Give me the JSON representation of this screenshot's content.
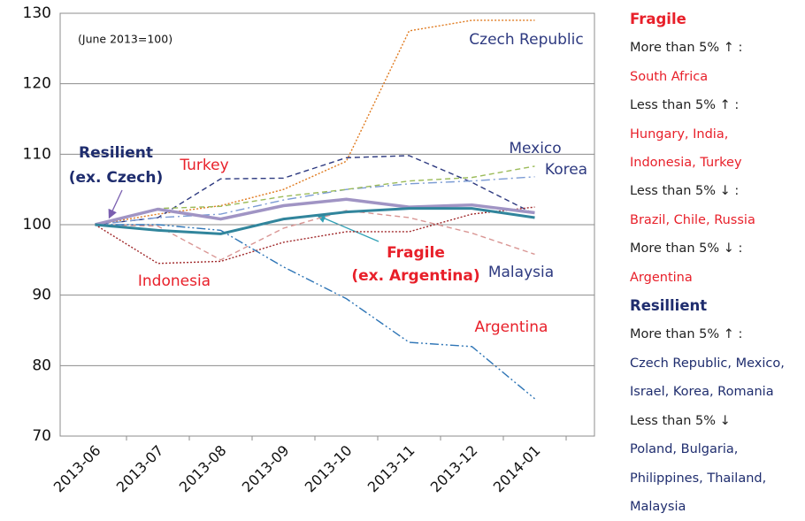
{
  "chart_data": {
    "type": "line",
    "note": "(June 2013=100)",
    "categories": [
      "2013-06",
      "2013-07",
      "2013-08",
      "2013-09",
      "2013-10",
      "2013-11",
      "2013-12",
      "2014-01"
    ],
    "ylim": [
      70,
      130
    ],
    "yticks": [
      70,
      80,
      90,
      100,
      110,
      120,
      130
    ],
    "grid": true,
    "series": [
      {
        "name": "Czech Republic",
        "color": "#e07b20",
        "style": "dotted",
        "values": [
          100,
          101.5,
          102.7,
          105,
          109,
          127.5,
          129,
          129
        ]
      },
      {
        "name": "Mexico",
        "color": "#2e3a80",
        "style": "dashed",
        "values": [
          100,
          101,
          106.5,
          106.6,
          109.5,
          109.8,
          106,
          101.5
        ]
      },
      {
        "name": "Korea",
        "color": "#7b9bd4",
        "style": "dashdot",
        "values": [
          100,
          101,
          101.5,
          103.5,
          105,
          105.8,
          106.2,
          106.8
        ]
      },
      {
        "color": "#9bbb59",
        "style": "dashed",
        "values": [
          100,
          102.3,
          102.6,
          104,
          105,
          106.2,
          106.7,
          108.3
        ]
      },
      {
        "name": "Turkey",
        "color": "#d99694",
        "style": "dashed",
        "values": [
          100,
          99.8,
          95,
          99.5,
          102,
          101,
          98.8,
          95.8
        ]
      },
      {
        "name": "Indonesia",
        "color": "#a0282a",
        "style": "dotted",
        "values": [
          100,
          94.5,
          94.8,
          97.5,
          99,
          99,
          101.5,
          102.5
        ]
      },
      {
        "name": "Argentina",
        "color": "#2e75b6",
        "style": "dashdotdot",
        "values": [
          100,
          100,
          99.2,
          94,
          89.5,
          83.3,
          82.7,
          75.3
        ]
      },
      {
        "color": "#a094c4",
        "style": "solid",
        "width": 3.5,
        "values": [
          100,
          102.2,
          100.8,
          102.7,
          103.6,
          102.5,
          102.8,
          101.7
        ]
      },
      {
        "color": "#31859c",
        "style": "solid",
        "width": 3,
        "values": [
          100,
          99.2,
          98.7,
          100.8,
          101.8,
          102.3,
          102.3,
          101
        ]
      }
    ],
    "annotations": [
      "Resilient",
      "(ex. Czech)",
      "Fragile",
      "(ex. Argentina)",
      "Malaysia"
    ]
  },
  "side_panel": [
    {
      "heading": "Fragile",
      "rows": [
        {
          "label": "More than 5% ↑ :",
          "lines": [
            "South Africa"
          ]
        },
        {
          "label": "Less than 5% ↑ :",
          "lines": [
            "Hungary, India,",
            "Indonesia, Turkey"
          ]
        },
        {
          "label": "Less than 5% ↓ :",
          "lines": [
            "Brazil, Chile, Russia"
          ]
        },
        {
          "label": "More than 5% ↓ :",
          "lines": [
            "Argentina"
          ]
        }
      ]
    },
    {
      "heading": "Resillient",
      "rows": [
        {
          "label": "More than 5% ↑ :",
          "lines": [
            "Czech Republic, Mexico,",
            "Israel, Korea, Romania"
          ]
        },
        {
          "label": "Less than 5% ↓",
          "lines": [
            "Poland, Bulgaria,",
            "Philippines, Thailand,",
            "Malaysia"
          ]
        }
      ]
    }
  ]
}
